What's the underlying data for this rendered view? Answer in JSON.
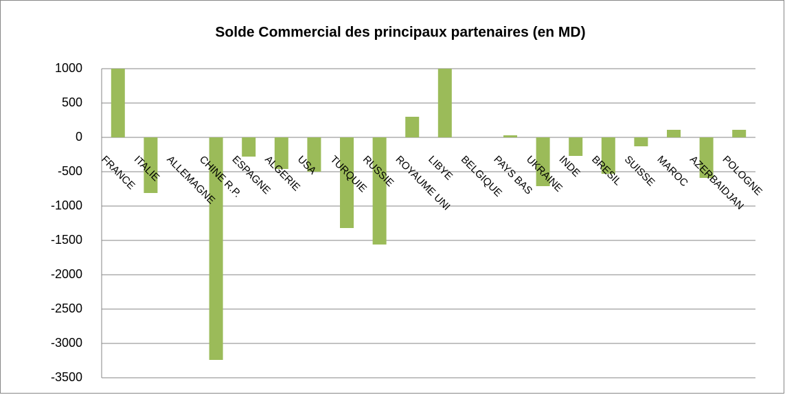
{
  "chart_data": {
    "type": "bar",
    "title": "Solde Commercial des principaux partenaires  (en MD)",
    "categories": [
      "FRANCE",
      "ITALIE",
      "ALLEMAGNE",
      "CHINE R.P.",
      "ESPAGNE",
      "ALGERIE",
      "USA",
      "TURQUIE",
      "RUSSIE",
      "ROYAUME UNI",
      "LIBYE",
      "BELGIQUE",
      "PAYS BAS",
      "UKRAINE",
      "INDE",
      "BRESIL",
      "SUISSE",
      "MAROC",
      "AZERBAIDJAN",
      "POLOGNE"
    ],
    "values": [
      1000,
      -810,
      0,
      -3240,
      -280,
      -460,
      -500,
      -1320,
      -1560,
      300,
      1000,
      0,
      30,
      -710,
      -270,
      -530,
      -130,
      110,
      -590,
      110
    ],
    "color": "#9bbb59",
    "ylim": [
      -3500,
      1000
    ],
    "yticks": [
      -3500,
      -3000,
      -2500,
      -2000,
      -1500,
      -1000,
      -500,
      0,
      500,
      1000
    ],
    "grid": true
  }
}
